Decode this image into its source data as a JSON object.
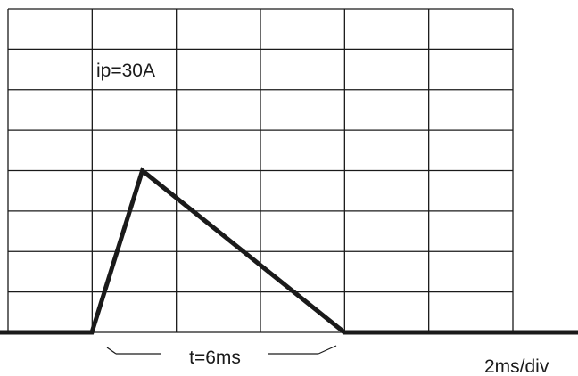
{
  "chart_data": {
    "type": "line",
    "title": "",
    "xlabel": "",
    "ylabel": "",
    "x_divisions": 6,
    "y_divisions": 8,
    "scale_label": "2ms/div",
    "series": [
      {
        "x_ms": [
          -4,
          0,
          1.2,
          6,
          12
        ],
        "y_A": [
          0,
          0,
          30,
          0,
          0
        ]
      }
    ],
    "annotations": {
      "peak": "ip=30A",
      "duration": "t=6ms"
    },
    "grid": true,
    "colors": {
      "line": "#1a1a1a",
      "grid": "#1a1a1a",
      "background": "#ffffff"
    }
  }
}
